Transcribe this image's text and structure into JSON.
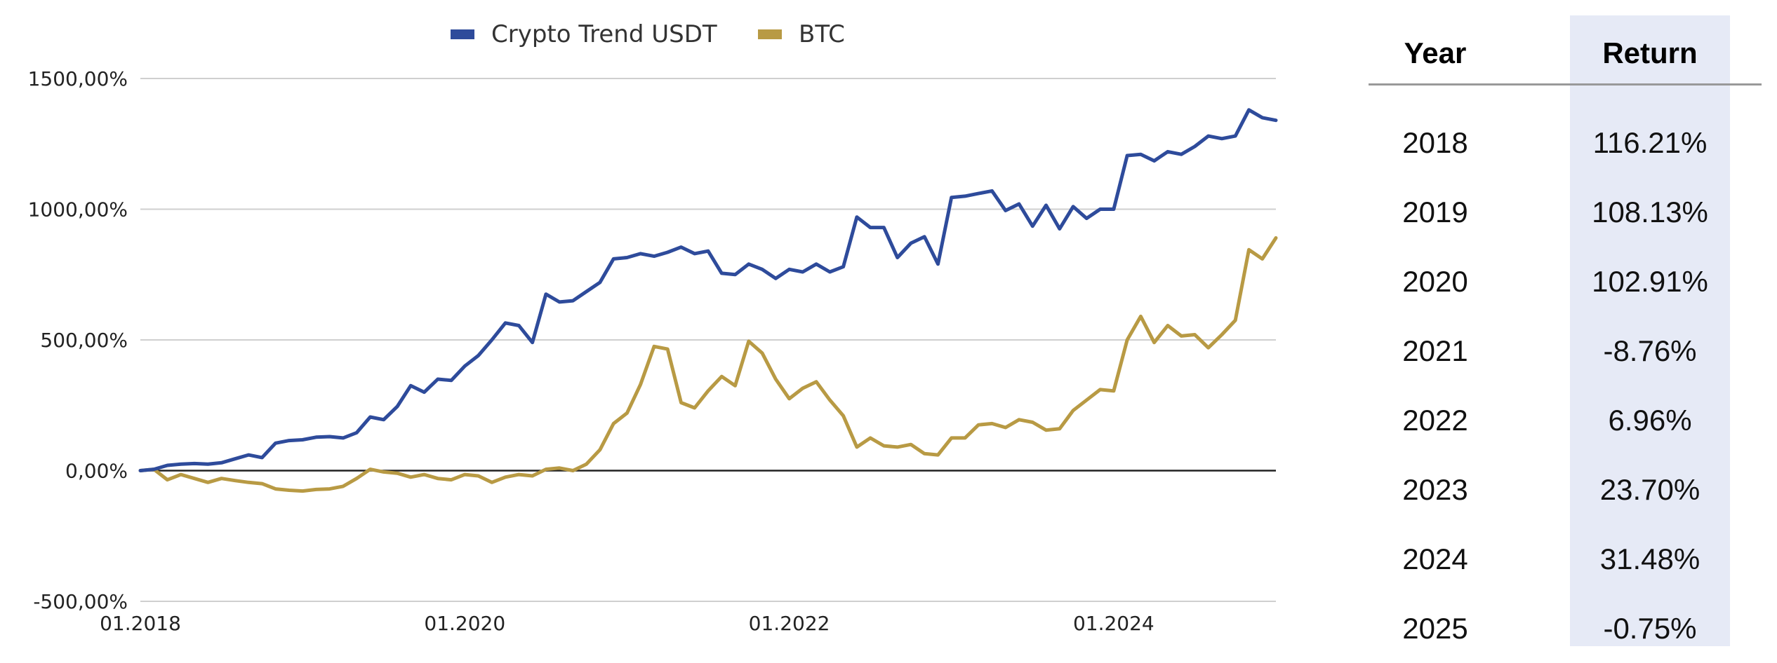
{
  "chart_data": {
    "type": "line",
    "x_range": [
      "01.2018",
      "12.2024"
    ],
    "x_tick_labels": [
      "01.2018",
      "01.2020",
      "01.2022",
      "01.2024"
    ],
    "ylim": [
      -500,
      1500
    ],
    "y_ticks": [
      1500,
      1000,
      500,
      0,
      -500
    ],
    "y_tick_labels": [
      "1500,00%",
      "1000,00%",
      "500,00%",
      "0,00%",
      "-500,00%"
    ],
    "grid": true,
    "legend_position": "top-center",
    "series": [
      {
        "name": "Crypto Trend USDT",
        "color": "#2e4b9b",
        "values": [
          0,
          5,
          20,
          25,
          27,
          25,
          30,
          45,
          60,
          50,
          105,
          115,
          118,
          128,
          130,
          125,
          145,
          205,
          195,
          245,
          325,
          300,
          350,
          345,
          400,
          440,
          500,
          565,
          555,
          490,
          675,
          645,
          650,
          685,
          720,
          810,
          815,
          830,
          820,
          835,
          855,
          830,
          840,
          755,
          750,
          790,
          770,
          735,
          770,
          760,
          790,
          760,
          780,
          970,
          930,
          930,
          815,
          870,
          895,
          790,
          1045,
          1050,
          1060,
          1070,
          995,
          1020,
          935,
          1015,
          925,
          1010,
          965,
          1000,
          1000,
          1205,
          1210,
          1185,
          1220,
          1210,
          1240,
          1280,
          1270,
          1280,
          1380,
          1350,
          1340
        ]
      },
      {
        "name": "BTC",
        "color": "#b89a44",
        "values": [
          0,
          5,
          -35,
          -15,
          -30,
          -45,
          -30,
          -38,
          -45,
          -50,
          -70,
          -75,
          -78,
          -72,
          -70,
          -60,
          -30,
          5,
          -5,
          -10,
          -25,
          -15,
          -30,
          -35,
          -15,
          -20,
          -45,
          -25,
          -15,
          -20,
          5,
          10,
          0,
          25,
          80,
          180,
          220,
          330,
          475,
          465,
          260,
          240,
          305,
          360,
          325,
          495,
          450,
          350,
          275,
          315,
          340,
          270,
          210,
          90,
          125,
          95,
          90,
          100,
          65,
          60,
          125,
          125,
          175,
          180,
          165,
          195,
          185,
          155,
          160,
          230,
          270,
          310,
          305,
          500,
          590,
          490,
          555,
          515,
          520,
          470,
          520,
          575,
          845,
          810,
          890
        ]
      }
    ]
  },
  "table": {
    "headers": {
      "year": "Year",
      "return": "Return"
    },
    "rows": [
      {
        "year": "2018",
        "return": "116.21%"
      },
      {
        "year": "2019",
        "return": "108.13%"
      },
      {
        "year": "2020",
        "return": "102.91%"
      },
      {
        "year": "2021",
        "return": "-8.76%"
      },
      {
        "year": "2022",
        "return": "6.96%"
      },
      {
        "year": "2023",
        "return": "23.70%"
      },
      {
        "year": "2024",
        "return": "31.48%"
      },
      {
        "year": "2025",
        "return": "-0.75%"
      }
    ],
    "return_column_bg": "#e6eaf6"
  }
}
